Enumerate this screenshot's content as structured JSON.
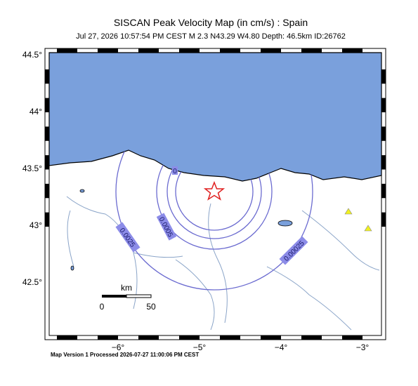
{
  "header": {
    "title": "SISCAN Peak Velocity Map (in cm/s) : Spain",
    "subtitle": "Jul 27, 2026 10:57:54 PM CEST   M 2.3   N43.29 W4.80   Depth: 46.5km   ID:26762"
  },
  "axes": {
    "latitude_labels": [
      "44.5°",
      "44°",
      "43.5°",
      "43°",
      "42.5°"
    ],
    "longitude_labels": [
      "−6°",
      "−5°",
      "−4°",
      "−3°"
    ]
  },
  "contours": {
    "labels": [
      "0",
      "0.0025",
      "0.0005",
      "0.00025"
    ]
  },
  "scale_bar": {
    "unit": "km",
    "start": "0",
    "end": "50"
  },
  "footer": "Map Version 1 Processed 2026-07-27 11:00:06 PM CEST"
}
